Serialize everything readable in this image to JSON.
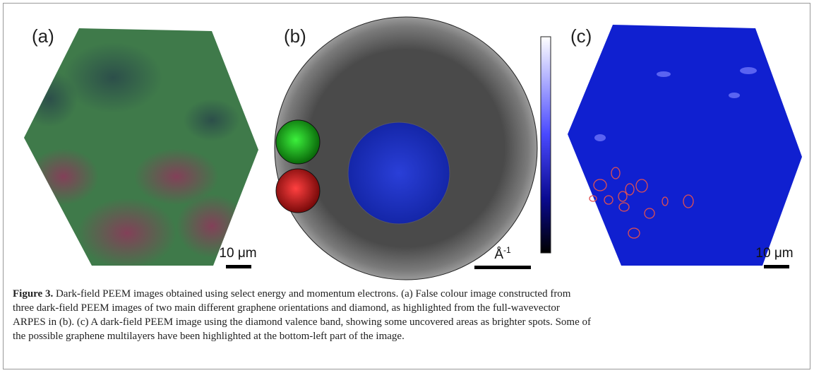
{
  "figure": {
    "panels": [
      {
        "label": "(a)",
        "scale_bar": "10 μm"
      },
      {
        "label": "(b)",
        "scale_bar": {
          "base": "Å",
          "superscript": "-1"
        }
      },
      {
        "label": "(c)",
        "scale_bar": "10 μm"
      }
    ],
    "caption": {
      "label": "Figure 3.",
      "lines": [
        "Dark-field PEEM images obtained using select energy and momentum electrons. (a) False colour image constructed from",
        "three dark-field PEEM images of two main different graphene orientations and diamond, as highlighted from the full-wavevector",
        "ARPES in (b). (c) A dark-field PEEM image using the diamond valence band, showing some uncovered areas as brighter spots. Some of",
        "the possible graphene multilayers have been highlighted at the bottom-left part of the image."
      ]
    }
  }
}
